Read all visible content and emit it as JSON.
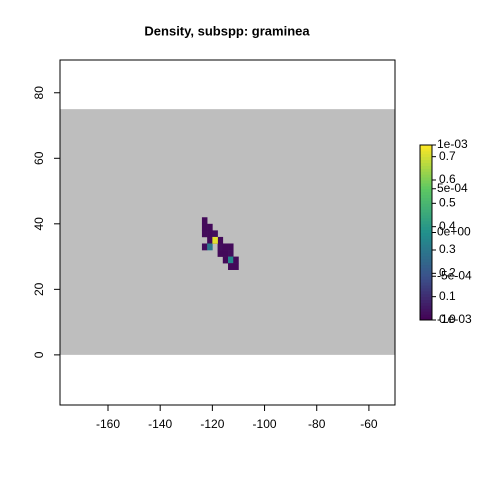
{
  "chart_data": {
    "type": "raster",
    "title": "Density, subspp: graminea",
    "xlim": [
      -178.4,
      -50
    ],
    "ylim": [
      -15.3,
      90
    ],
    "xticks": [
      -160,
      -140,
      -120,
      -100,
      -80,
      -60
    ],
    "yticks": [
      0,
      20,
      40,
      60,
      80
    ],
    "extent": {
      "x": [
        -178.4,
        -50
      ],
      "y": [
        0,
        75
      ],
      "color": "#bebebe"
    },
    "cell_size": 2,
    "cells": {
      "x": [
        -124,
        -124,
        -122,
        -124,
        -122,
        -120,
        -122,
        -120,
        -118,
        -124,
        -122,
        -118,
        -116,
        -114,
        -118,
        -116,
        -114,
        -116,
        -114,
        -112,
        -114,
        -112,
        -120
      ],
      "y": [
        40,
        38,
        38,
        36,
        36,
        36,
        34,
        34,
        34,
        32,
        32,
        32,
        32,
        32,
        30,
        30,
        30,
        28,
        28,
        28,
        26,
        26,
        34
      ],
      "values": [
        0.02,
        0.02,
        0.02,
        0.02,
        0.02,
        0.03,
        0.02,
        0.03,
        0.02,
        0.03,
        0.3,
        0.03,
        0.02,
        0.02,
        0.02,
        0.02,
        0.03,
        0.02,
        0.35,
        0.02,
        0.02,
        0.02,
        0.72
      ]
    },
    "colormap": [
      "#440154",
      "#3b528b",
      "#21908c",
      "#5dc863",
      "#fde725"
    ],
    "colorbar": {
      "lim": [
        0,
        0.75
      ],
      "ticks": [
        {
          "value": 0,
          "label": "0.0"
        },
        0.1,
        0.2,
        0.3,
        0.4,
        0.5,
        0.6,
        0.7
      ],
      "lim2": [
        -0.001,
        0.001
      ],
      "ticks2": [
        {
          "value": -0.001,
          "label": "-1e-03"
        },
        {
          "value": -0.0005,
          "label": "-5e-04"
        },
        {
          "value": 0,
          "label": "0e+00"
        },
        {
          "value": 0.0005,
          "label": "5e-04"
        },
        {
          "value": 0.001,
          "label": "1e-03"
        }
      ]
    }
  }
}
